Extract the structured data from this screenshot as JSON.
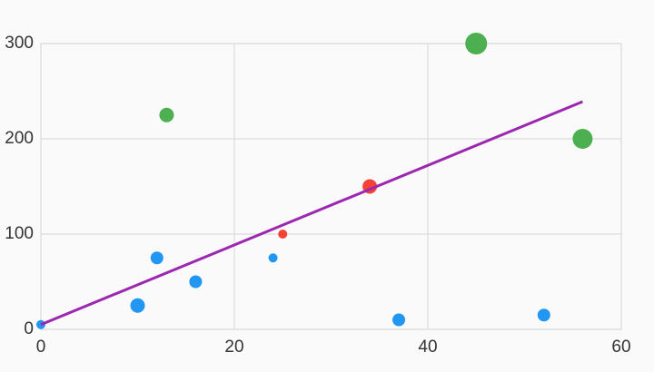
{
  "chart_data": {
    "type": "scatter",
    "xlim": [
      0,
      60
    ],
    "xticks": [
      0,
      20,
      40,
      60
    ],
    "ylim": [
      0,
      300
    ],
    "yticks": [
      0,
      100,
      200,
      300
    ],
    "grid": true,
    "series": [
      {
        "x": [
          0,
          10,
          12,
          13,
          16,
          24,
          25,
          34,
          37,
          45,
          52,
          56
        ],
        "values": [
          5,
          25,
          75,
          225,
          50,
          75,
          100,
          150,
          10,
          300,
          15,
          200
        ],
        "sizes": [
          5,
          8,
          7,
          8,
          7,
          5,
          5,
          8,
          7,
          12,
          7,
          11
        ],
        "colors": [
          "#2196f3",
          "#2196f3",
          "#2196f3",
          "#4caf50",
          "#2196f3",
          "#2196f3",
          "#f44336",
          "#f44336",
          "#2196f3",
          "#4caf50",
          "#2196f3",
          "#4caf50"
        ]
      },
      {
        "type": "line",
        "x": [
          0,
          56
        ],
        "values": [
          5,
          239
        ],
        "color": "#9c27b0"
      }
    ]
  }
}
